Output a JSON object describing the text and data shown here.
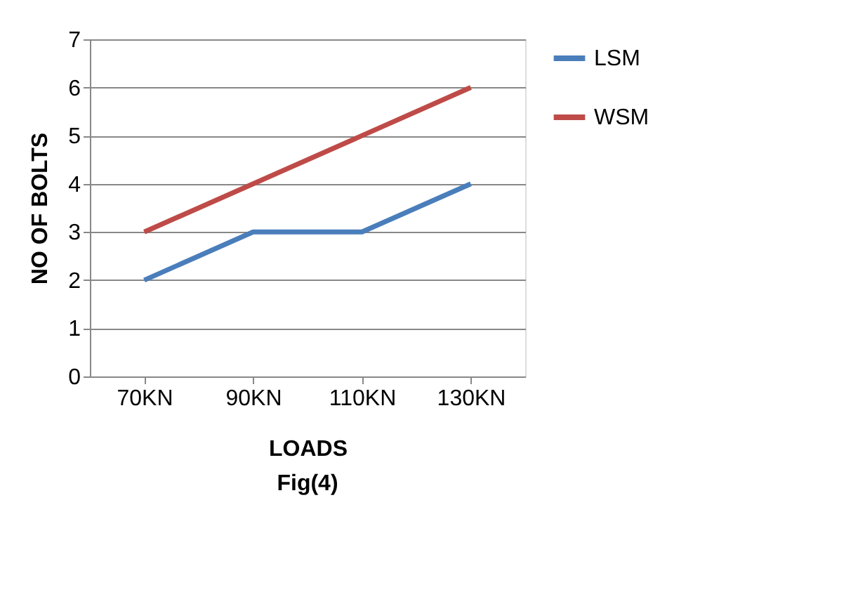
{
  "chart_data": {
    "type": "line",
    "xlabel": "LOADS",
    "ylabel": "NO OF BOLTS",
    "annotations": [
      "Fig(4)"
    ],
    "categories": [
      "70KN",
      "90KN",
      "110KN",
      "130KN"
    ],
    "series": [
      {
        "name": "LSM",
        "color": "#4a7ebb",
        "values": [
          2,
          3,
          3,
          4
        ]
      },
      {
        "name": "WSM",
        "color": "#be4b48",
        "values": [
          3,
          4,
          5,
          6
        ]
      }
    ],
    "ylim": [
      0,
      7
    ],
    "yticks": [
      0,
      1,
      2,
      3,
      4,
      5,
      6,
      7
    ],
    "grid": "y",
    "legend": "right",
    "marker": "none",
    "line_style": "solid"
  }
}
